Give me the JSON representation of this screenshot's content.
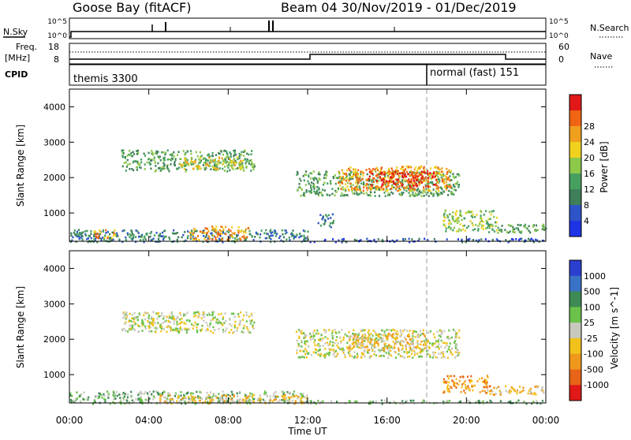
{
  "header": {
    "station": "Goose Bay (fitACF)",
    "beam_date": "Beam 04  30/Nov/2019 - 01/Dec/2019"
  },
  "left_labels": {
    "nsky": "N.Sky",
    "nsky_ticks": [
      "10^5",
      "10^0"
    ],
    "freq": "Freq.",
    "freq_unit": "[MHz]",
    "freq_ticks": [
      "18",
      "8"
    ],
    "cpid": "CPID"
  },
  "right_labels": {
    "nsearch_ticks": [
      "10^5",
      "10^0"
    ],
    "nsearch": "N.Search",
    "nave_ticks": [
      "60",
      "0"
    ],
    "nave": "Nave"
  },
  "cpid_bar": {
    "left_text": "themis 3300",
    "right_text": "normal (fast) 151"
  },
  "colors": {
    "power_scale": [
      "#1f33e6",
      "#2e55c8",
      "#3f7f5a",
      "#48a060",
      "#8dc84a",
      "#f0d21e",
      "#f0a01e",
      "#f06414",
      "#e21818"
    ],
    "velocity_scale": [
      "#2a3fd0",
      "#3a72c8",
      "#3e8a55",
      "#6ac24a",
      "#c8c8bc",
      "#f2c21c",
      "#f0981c",
      "#e86418",
      "#e01818"
    ],
    "ground_grey": "#c8c8c0"
  },
  "chart_data": [
    {
      "type": "heatmap",
      "panel": "power",
      "ylabel": "Slant Range [km]",
      "y_ticks": [
        "1000",
        "2000",
        "3000",
        "4000"
      ],
      "ylim": [
        200,
        4500
      ],
      "x_ticks": [
        "00:00",
        "04:00",
        "08:00",
        "12:00",
        "16:00",
        "20:00",
        "00:00"
      ],
      "xlim_hours": [
        0,
        24
      ],
      "colorbar_label": "Power [dB]",
      "colorbar_ticks": [
        "4",
        "8",
        "12",
        "16",
        "20",
        "24",
        "28"
      ],
      "regions": [
        {
          "t0": 2.6,
          "t1": 9.3,
          "r0": 2200,
          "r1": 2800,
          "level": 3
        },
        {
          "t0": 5.5,
          "t1": 8.8,
          "r0": 2250,
          "r1": 2600,
          "level": 5
        },
        {
          "t0": 11.4,
          "t1": 19.6,
          "r0": 1500,
          "r1": 2200,
          "level": 3
        },
        {
          "t0": 13.5,
          "t1": 19.2,
          "r0": 1650,
          "r1": 2350,
          "level": 6
        },
        {
          "t0": 15.0,
          "t1": 18.5,
          "r0": 1750,
          "r1": 2200,
          "level": 8
        },
        {
          "t0": 12.5,
          "t1": 13.3,
          "r0": 600,
          "r1": 1000,
          "level": 2
        },
        {
          "t0": 18.8,
          "t1": 21.5,
          "r0": 500,
          "r1": 1100,
          "level": 4
        },
        {
          "t0": 21.0,
          "t1": 24.0,
          "r0": 450,
          "r1": 700,
          "level": 3
        },
        {
          "t0": 0.0,
          "t1": 12.0,
          "r0": 200,
          "r1": 550,
          "level": 2
        },
        {
          "t0": 6.0,
          "t1": 9.0,
          "r0": 250,
          "r1": 650,
          "level": 6
        },
        {
          "t0": 1.2,
          "t1": 2.3,
          "r0": 300,
          "r1": 550,
          "level": 6
        },
        {
          "t0": 12.0,
          "t1": 24.0,
          "r0": 200,
          "r1": 300,
          "level": 1
        }
      ]
    },
    {
      "type": "heatmap",
      "panel": "velocity",
      "ylabel": "Slant Range [km]",
      "y_ticks": [
        "1000",
        "2000",
        "3000",
        "4000"
      ],
      "ylim": [
        200,
        4500
      ],
      "x_ticks": [
        "00:00",
        "04:00",
        "08:00",
        "12:00",
        "16:00",
        "20:00",
        "00:00"
      ],
      "xlim_hours": [
        0,
        24
      ],
      "xlabel": "Time UT",
      "colorbar_label": "Velocity [m s^-1]",
      "colorbar_ticks": [
        "1000",
        "500",
        "100",
        "25",
        "-25",
        "-100",
        "-500",
        "-1000"
      ],
      "regions": [
        {
          "t0": 2.6,
          "t1": 9.3,
          "r0": 2200,
          "r1": 2800,
          "level": 4
        },
        {
          "t0": 11.4,
          "t1": 19.6,
          "r0": 1500,
          "r1": 2300,
          "level": 4
        },
        {
          "t0": 14.0,
          "t1": 18.0,
          "r0": 1700,
          "r1": 2200,
          "level": 5
        },
        {
          "t0": 18.8,
          "t1": 21.2,
          "r0": 500,
          "r1": 1000,
          "level": 6
        },
        {
          "t0": 21.0,
          "t1": 24.0,
          "r0": 450,
          "r1": 700,
          "level": 5
        },
        {
          "t0": 0.0,
          "t1": 12.0,
          "r0": 200,
          "r1": 550,
          "level": 3
        },
        {
          "t0": 4.5,
          "t1": 12.0,
          "r0": 200,
          "r1": 450,
          "level": 5
        },
        {
          "t0": 12.0,
          "t1": 24.0,
          "r0": 200,
          "r1": 300,
          "level": 3
        }
      ]
    }
  ]
}
